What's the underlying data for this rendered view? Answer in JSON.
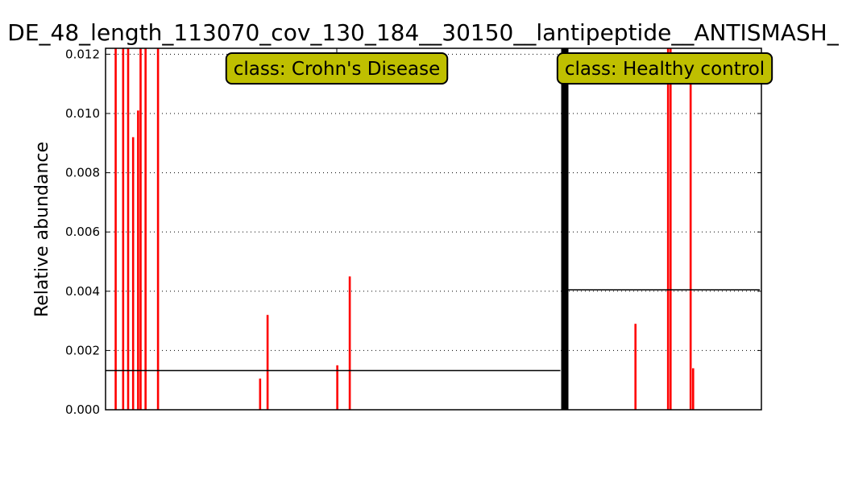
{
  "chart_data": {
    "type": "bar",
    "title": "DE_48_length_113070_cov_130_184__30150__lantipeptide__ANTISMASH_",
    "ylabel": "Relative abundance",
    "xlabel": "",
    "ylim": [
      0,
      0.0122
    ],
    "yticks": [
      "0.000",
      "0.002",
      "0.004",
      "0.006",
      "0.008",
      "0.010",
      "0.012"
    ],
    "grid": "horizontal-dotted",
    "bar_color": "#ff0000",
    "mean_line_color": "#000000",
    "classes": [
      {
        "name": "class: Crohn's Disease",
        "mean": 0.00132,
        "sample_count": 182,
        "values": [
          {
            "index": 3,
            "value": 0.0122
          },
          {
            "index": 6,
            "value": 0.0122
          },
          {
            "index": 8,
            "value": 0.0122
          },
          {
            "index": 10,
            "value": 0.0092
          },
          {
            "index": 12,
            "value": 0.0101
          },
          {
            "index": 13,
            "value": 0.0122
          },
          {
            "index": 15,
            "value": 0.0122
          },
          {
            "index": 20,
            "value": 0.0122
          },
          {
            "index": 61,
            "value": 0.00105
          },
          {
            "index": 64,
            "value": 0.0032
          },
          {
            "index": 92,
            "value": 0.0015
          },
          {
            "index": 97,
            "value": 0.0045
          }
        ]
      },
      {
        "name": "class: Healthy control",
        "mean": 0.00405,
        "sample_count": 76,
        "values": [
          {
            "index": 26,
            "value": 0.0029
          },
          {
            "index": 39,
            "value": 0.0122
          },
          {
            "index": 40,
            "value": 0.0122
          },
          {
            "index": 48,
            "value": 0.011
          },
          {
            "index": 49,
            "value": 0.0014
          }
        ]
      }
    ]
  }
}
